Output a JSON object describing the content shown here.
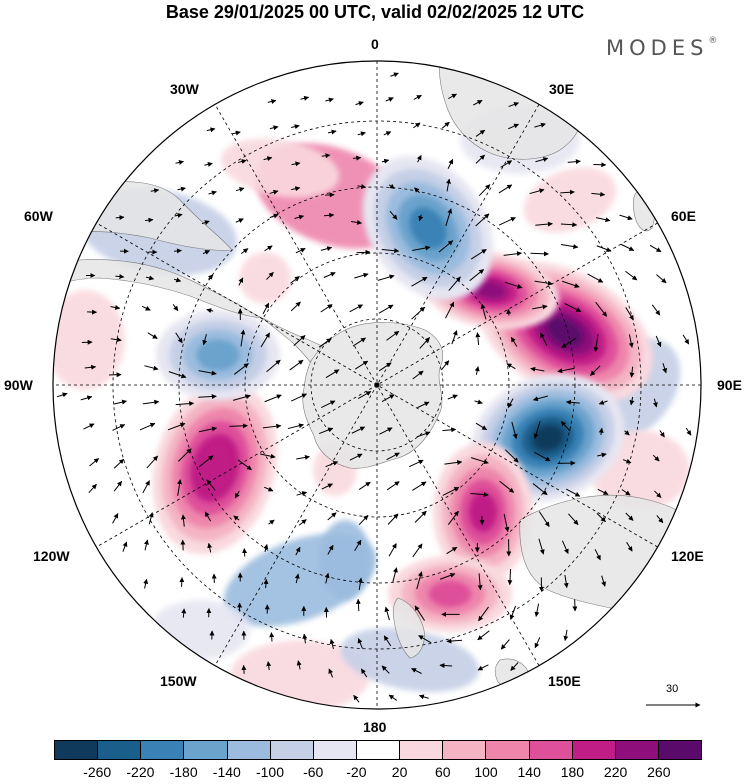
{
  "header": {
    "title": "Base 29/01/2025 00 UTC, valid 02/02/2025 12 UTC",
    "brand": "MODES",
    "brand_mark": "®"
  },
  "map": {
    "projection": "south polar stereographic",
    "meridian_labels": [
      "0",
      "30E",
      "60E",
      "90E",
      "120E",
      "150E",
      "180",
      "150W",
      "120W",
      "90W",
      "60W",
      "30W"
    ],
    "land_color": "#e6e6e6",
    "reference_vector": {
      "value": "30"
    },
    "anomaly_centers": [
      {
        "type": "positive",
        "level": 260
      },
      {
        "type": "negative",
        "level": -260
      },
      {
        "type": "positive",
        "level": 220
      },
      {
        "type": "negative",
        "level": -180
      },
      {
        "type": "positive",
        "level": 200
      },
      {
        "type": "positive",
        "level": 180
      },
      {
        "type": "negative",
        "level": -140
      },
      {
        "type": "positive",
        "level": 140
      }
    ]
  },
  "legend": {
    "ticks": [
      "-260",
      "-220",
      "-180",
      "-140",
      "-100",
      "-60",
      "-20",
      "20",
      "60",
      "100",
      "140",
      "180",
      "220",
      "260"
    ],
    "colors": [
      "#0f3a5c",
      "#1a5e8c",
      "#3a82b6",
      "#6aa3cc",
      "#9bbcde",
      "#c5cfe6",
      "#e6e6f2",
      "#ffffff",
      "#f9d9df",
      "#f4b4c4",
      "#ee86ac",
      "#de509a",
      "#c01e86",
      "#8e0e7c",
      "#5a0a6a"
    ]
  }
}
